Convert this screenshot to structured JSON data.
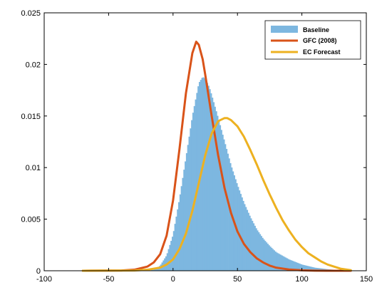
{
  "chart_data": {
    "type": "area",
    "title": "",
    "xlabel": "",
    "ylabel": "",
    "xlim": [
      -100,
      150
    ],
    "ylim": [
      0,
      0.025
    ],
    "xticks": [
      -100,
      -50,
      0,
      50,
      100,
      150
    ],
    "xtick_labels": [
      "-100",
      "-50",
      "0",
      "50",
      "100",
      "150"
    ],
    "yticks": [
      0,
      0.005,
      0.01,
      0.015,
      0.02,
      0.025
    ],
    "ytick_labels": [
      "0",
      "0.005",
      "0.01",
      "0.015",
      "0.02",
      "0.025"
    ],
    "grid": false,
    "legend_position": "top-right",
    "series": [
      {
        "name": "Baseline",
        "kind": "histogram",
        "color": "#7db7e0",
        "x": [
          -20,
          -15,
          -10,
          -5,
          0,
          5,
          10,
          15,
          20,
          23,
          25,
          28,
          30,
          35,
          40,
          45,
          50,
          55,
          60,
          65,
          70,
          75,
          80,
          90,
          100,
          110,
          120,
          130,
          138
        ],
        "y": [
          0,
          0.0001,
          0.0005,
          0.0015,
          0.0035,
          0.007,
          0.011,
          0.015,
          0.0182,
          0.0188,
          0.0186,
          0.0178,
          0.017,
          0.0148,
          0.0125,
          0.0102,
          0.0083,
          0.0066,
          0.0052,
          0.004,
          0.0031,
          0.0024,
          0.0018,
          0.0011,
          0.0006,
          0.0003,
          0.00015,
          5e-05,
          0
        ]
      },
      {
        "name": "GFC (2008)",
        "kind": "line",
        "color": "#d95319",
        "x": [
          -70,
          -40,
          -30,
          -20,
          -15,
          -10,
          -5,
          0,
          5,
          10,
          15,
          18,
          20,
          23,
          25,
          30,
          35,
          40,
          45,
          50,
          55,
          60,
          65,
          70,
          75,
          80,
          90,
          100,
          110,
          120,
          130,
          138
        ],
        "y": [
          0,
          3e-05,
          0.0001,
          0.0004,
          0.0008,
          0.0016,
          0.0034,
          0.0068,
          0.0118,
          0.0172,
          0.0211,
          0.0222,
          0.0219,
          0.0205,
          0.019,
          0.015,
          0.0112,
          0.008,
          0.0056,
          0.0038,
          0.0026,
          0.0018,
          0.0012,
          0.0008,
          0.0005,
          0.0003,
          0.00012,
          4e-05,
          1e-05,
          0,
          0,
          0
        ]
      },
      {
        "name": "EC Forecast",
        "kind": "line",
        "color": "#edb120",
        "x": [
          -70,
          -30,
          -20,
          -10,
          -5,
          0,
          5,
          10,
          15,
          20,
          25,
          30,
          35,
          40,
          42,
          45,
          50,
          55,
          60,
          65,
          70,
          75,
          80,
          85,
          90,
          95,
          100,
          105,
          110,
          115,
          120,
          125,
          130,
          138
        ],
        "y": [
          0,
          3e-05,
          0.0001,
          0.0003,
          0.0006,
          0.0011,
          0.0021,
          0.0036,
          0.0058,
          0.0085,
          0.0112,
          0.0133,
          0.0145,
          0.0148,
          0.0148,
          0.0146,
          0.014,
          0.013,
          0.0117,
          0.0103,
          0.0088,
          0.0074,
          0.0061,
          0.0049,
          0.0039,
          0.003,
          0.0023,
          0.0017,
          0.0013,
          0.0009,
          0.0006,
          0.0004,
          0.0002,
          5e-05
        ]
      }
    ]
  }
}
